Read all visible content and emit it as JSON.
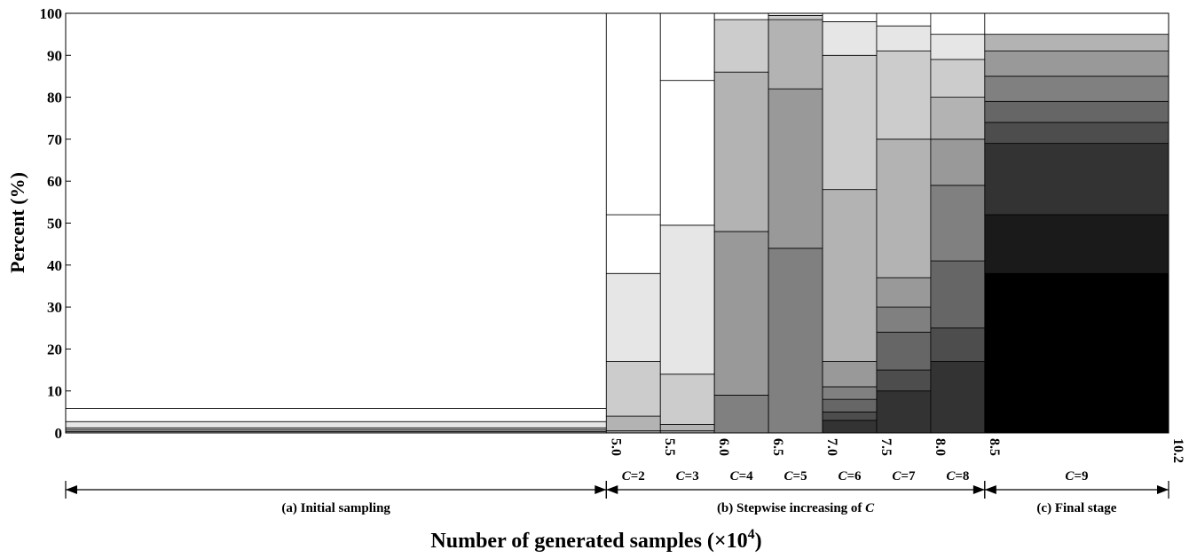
{
  "chart_data": {
    "type": "bar",
    "subtype": "stacked-variable-width",
    "xlabel_main": "Number of generated samples (×10",
    "xlabel_exp": "4",
    "xlabel_end": ")",
    "ylabel": "Percent (%)",
    "ylim": [
      0,
      100
    ],
    "xlim": [
      0,
      10.2
    ],
    "yticks": [
      "0",
      "10",
      "20",
      "30",
      "40",
      "50",
      "60",
      "70",
      "80",
      "90",
      "100"
    ],
    "xtick_labels": [
      "5.0",
      "5.5",
      "6.0",
      "6.5",
      "7.0",
      "7.5",
      "8.0",
      "8.5",
      "10.2"
    ],
    "xtick_values": [
      5.0,
      5.5,
      6.0,
      6.5,
      7.0,
      7.5,
      8.0,
      8.5,
      10.2
    ],
    "c_labels": [
      {
        "var": "C",
        "eq": "=2"
      },
      {
        "var": "C",
        "eq": "=3"
      },
      {
        "var": "C",
        "eq": "=4"
      },
      {
        "var": "C",
        "eq": "=5"
      },
      {
        "var": "C",
        "eq": "=6"
      },
      {
        "var": "C",
        "eq": "=7"
      },
      {
        "var": "C",
        "eq": "=8"
      },
      {
        "var": "C",
        "eq": "=9"
      }
    ],
    "phases": [
      {
        "label": "(a) Initial sampling",
        "x0": 0,
        "x1": 5.0
      },
      {
        "label": "(b) Stepwise increasing of ",
        "label_italic": "C",
        "x0": 5.0,
        "x1": 8.5
      },
      {
        "label": "(c) Final stage",
        "x0": 8.5,
        "x1": 10.2
      }
    ],
    "columns": [
      {
        "x0": 0.0,
        "x1": 5.0,
        "boundaries": [
          0.3,
          0.7,
          1.2,
          2.7,
          5.8
        ]
      },
      {
        "x0": 5.0,
        "x1": 5.5,
        "boundaries": [
          0.5,
          4,
          17,
          38,
          52
        ]
      },
      {
        "x0": 5.5,
        "x1": 6.0,
        "boundaries": [
          0.5,
          2,
          14,
          49.5,
          84
        ]
      },
      {
        "x0": 6.0,
        "x1": 6.5,
        "boundaries": [
          9,
          48,
          86,
          98.5
        ]
      },
      {
        "x0": 6.5,
        "x1": 7.0,
        "boundaries": [
          44,
          82,
          98.5,
          99.5
        ]
      },
      {
        "x0": 7.0,
        "x1": 7.5,
        "boundaries": [
          3,
          5,
          8,
          11,
          17,
          58,
          90,
          98
        ]
      },
      {
        "x0": 7.5,
        "x1": 8.0,
        "boundaries": [
          10,
          15,
          24,
          30,
          37,
          70,
          91,
          97
        ]
      },
      {
        "x0": 8.0,
        "x1": 8.5,
        "boundaries": [
          17,
          25,
          41,
          59,
          70,
          80,
          89,
          95
        ]
      },
      {
        "x0": 8.5,
        "x1": 10.2,
        "boundaries": [
          38,
          52,
          69,
          74,
          79,
          85,
          91,
          95
        ]
      }
    ],
    "grays": [
      "#000000",
      "#1a1a1a",
      "#333333",
      "#4d4d4d",
      "#666666",
      "#808080",
      "#999999",
      "#b3b3b3",
      "#cccccc",
      "#e6e6e6",
      "#ffffff"
    ],
    "column_gray_offsets": [
      6,
      6,
      6,
      5,
      5,
      2,
      2,
      2,
      0
    ]
  }
}
